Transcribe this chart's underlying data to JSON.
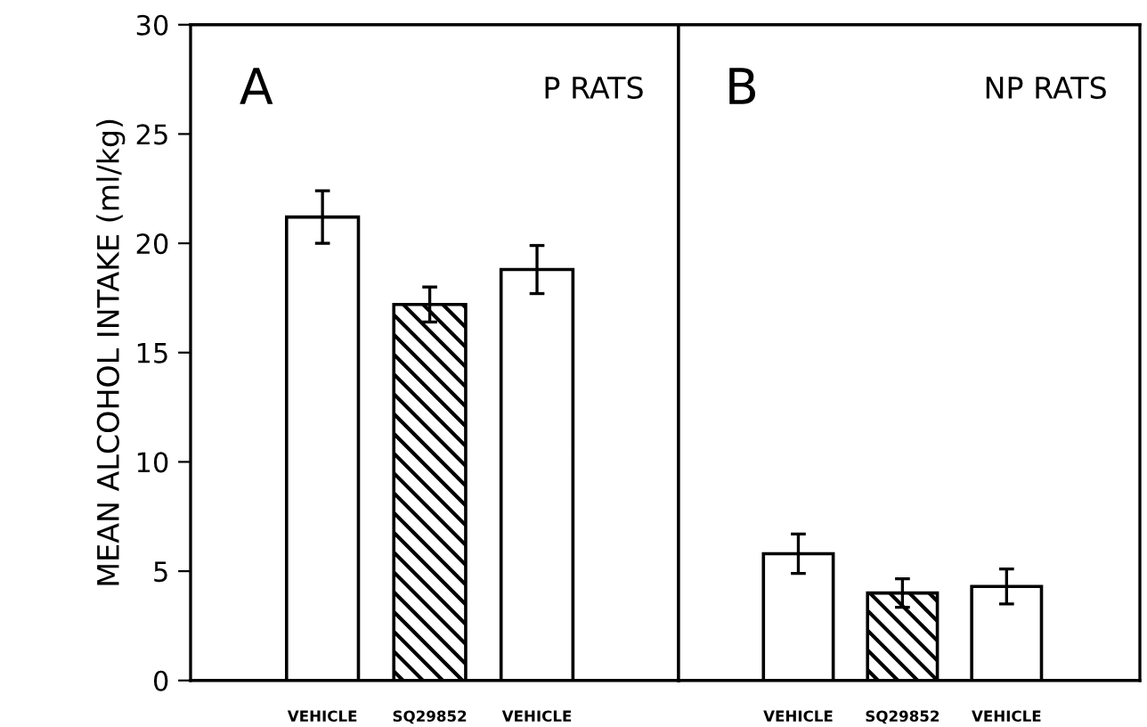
{
  "chart_data": [
    {
      "type": "bar",
      "categories": [
        "VEHICLE",
        "SQ29852",
        "VEHICLE"
      ],
      "series": [
        {
          "color": "#ffffff",
          "values": [
            21.2,
            null,
            18.8
          ],
          "errors": [
            1.2,
            null,
            1.1
          ]
        },
        {
          "color": "#000000",
          "values": [
            null,
            17.2,
            null
          ],
          "errors": [
            null,
            0.8,
            null
          ]
        }
      ],
      "ylabel": "MEAN ALCOHOL INTAKE (ml/kg)",
      "ylim": [
        0,
        30
      ],
      "yticks": [
        0,
        5,
        10,
        15,
        20,
        25,
        30
      ],
      "annotations": [
        "A",
        "P RATS"
      ],
      "grid": false
    },
    {
      "type": "bar",
      "categories": [
        "VEHICLE",
        "SQ29852",
        "VEHICLE"
      ],
      "series": [
        {
          "color": "#ffffff",
          "values": [
            5.8,
            null,
            4.3
          ],
          "errors": [
            0.9,
            null,
            0.8
          ]
        },
        {
          "color": "#000000",
          "values": [
            null,
            4.0,
            null
          ],
          "errors": [
            null,
            0.65,
            null
          ]
        }
      ],
      "ylim": [
        0,
        30
      ],
      "yticks": [
        0,
        5,
        10,
        15,
        20,
        25,
        30
      ],
      "tick_labels": "x",
      "annotations": [
        "B",
        "NP RATS"
      ],
      "grid": false
    }
  ]
}
